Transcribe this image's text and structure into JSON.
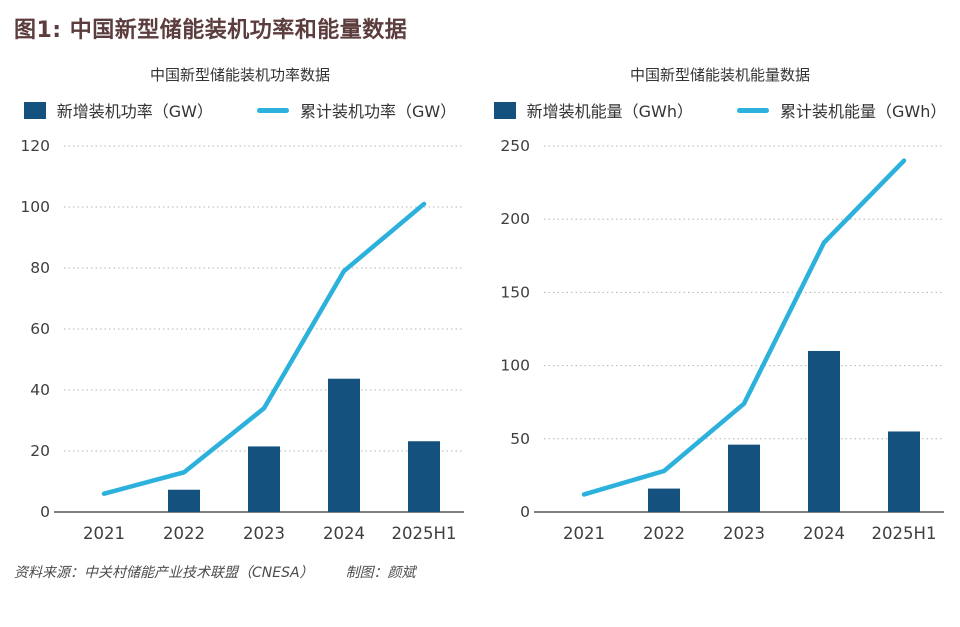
{
  "header": {
    "title": "图1: 中国新型储能装机功率和能量数据"
  },
  "footer": {
    "source": "资料来源：中关村储能产业技术联盟（CNESA）",
    "credit": "制图：颜斌"
  },
  "colors": {
    "bar": "#15517e",
    "line": "#2bb1dc",
    "title": "#5c3d3d",
    "grid": "#b5b5b5",
    "axis": "#7f7f7f",
    "tick_text": "#3e3e3e"
  },
  "chart_data": [
    {
      "type": "bar+line",
      "title": "中国新型储能装机功率数据",
      "categories": [
        "2021",
        "2022",
        "2023",
        "2024",
        "2025H1"
      ],
      "series": [
        {
          "name": "新增装机功率（GW）",
          "type": "bar",
          "values": [
            null,
            7.3,
            21.5,
            43.7,
            23.2
          ]
        },
        {
          "name": "累计装机功率（GW）",
          "type": "line",
          "values": [
            6,
            13,
            34,
            79,
            101
          ]
        }
      ],
      "ylim": [
        0,
        120
      ],
      "ytick_step": 20,
      "grid": true,
      "legend_position": "top"
    },
    {
      "type": "bar+line",
      "title": "中国新型储能装机能量数据",
      "categories": [
        "2021",
        "2022",
        "2023",
        "2024",
        "2025H1"
      ],
      "series": [
        {
          "name": "新增装机能量（GWh）",
          "type": "bar",
          "values": [
            null,
            16,
            46,
            110,
            55
          ]
        },
        {
          "name": "累计装机能量（GWh）",
          "type": "line",
          "values": [
            12,
            28,
            74,
            184,
            240
          ]
        }
      ],
      "ylim": [
        0,
        250
      ],
      "ytick_step": 50,
      "grid": true,
      "legend_position": "top"
    }
  ]
}
